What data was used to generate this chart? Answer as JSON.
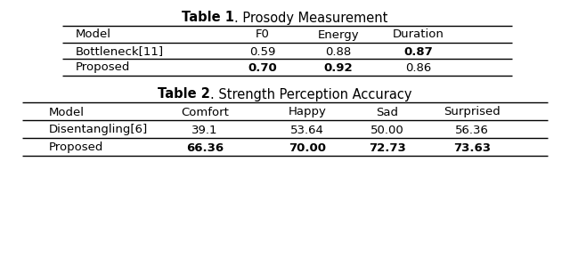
{
  "table1_title_bold": "Table 1",
  "table1_title_rest": ". Prosody Measurement",
  "table1_headers": [
    "Model",
    "F0",
    "Energy",
    "Duration"
  ],
  "table1_rows": [
    [
      "Bottleneck[11]",
      "0.59",
      "0.88",
      "0.87"
    ],
    [
      "Proposed",
      "0.70",
      "0.92",
      "0.86"
    ]
  ],
  "table1_bold": [
    [
      false,
      false,
      false,
      true
    ],
    [
      false,
      true,
      true,
      false
    ]
  ],
  "table2_title_bold": "Table 2",
  "table2_title_rest": ". Strength Perception Accuracy",
  "table2_headers": [
    "Model",
    "Comfort",
    "Happy",
    "Sad",
    "Surprised"
  ],
  "table2_rows": [
    [
      "Disentangling[6]",
      "39.1",
      "53.64",
      "50.00",
      "56.36"
    ],
    [
      "Proposed",
      "66.36",
      "70.00",
      "72.73",
      "73.63"
    ]
  ],
  "table2_bold": [
    [
      false,
      false,
      false,
      false,
      false
    ],
    [
      false,
      true,
      true,
      true,
      true
    ]
  ],
  "bg_color": "#ffffff",
  "fontsize": 9.5,
  "title_fontsize": 10.5
}
